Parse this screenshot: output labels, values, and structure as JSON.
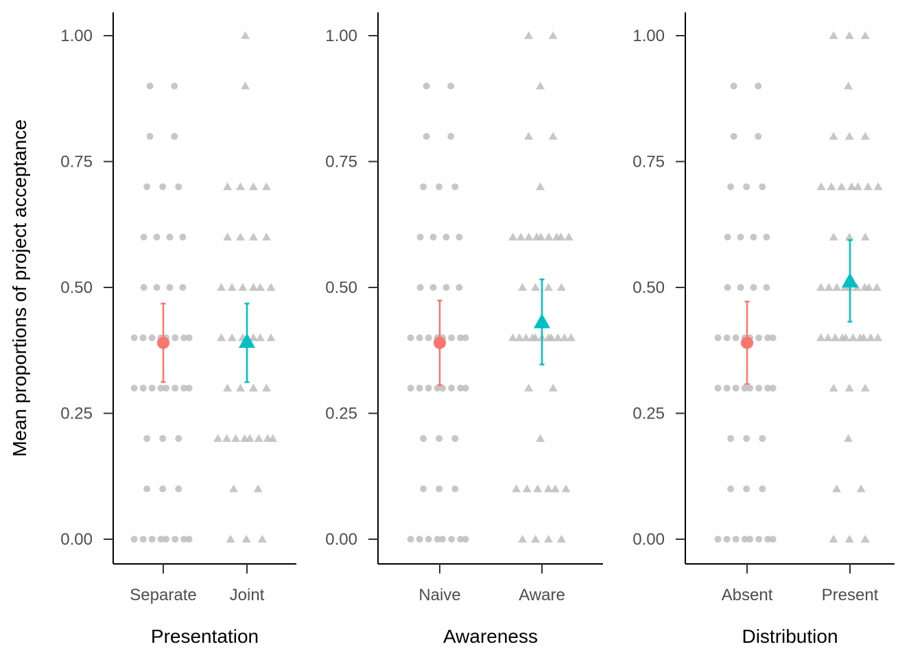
{
  "chart_data": {
    "type": "scatter",
    "ylabel": "Mean proportions of project acceptance",
    "ylim": [
      0,
      1
    ],
    "yticks": [
      0,
      0.25,
      0.5,
      0.75,
      1
    ],
    "ytick_labels": [
      "0.00",
      "0.25",
      "0.50",
      "0.75",
      "1.00"
    ],
    "colors": {
      "level1": "#F8766D",
      "level2": "#00BFC4",
      "raw": "#bdbdbd"
    },
    "panels": [
      {
        "xlabel": "Presentation",
        "categories": [
          "Separate",
          "Joint"
        ],
        "means": [
          0.39,
          0.393
        ],
        "ci_low": [
          0.312,
          0.312
        ],
        "ci_high": [
          0.468,
          0.468
        ],
        "raw": [
          [
            0.0,
            0.0,
            0.0,
            0.0,
            0.0,
            0.0,
            0.0,
            0.0,
            0.1,
            0.1,
            0.1,
            0.2,
            0.2,
            0.2,
            0.3,
            0.3,
            0.3,
            0.3,
            0.3,
            0.3,
            0.3,
            0.3,
            0.4,
            0.4,
            0.4,
            0.4,
            0.4,
            0.4,
            0.4,
            0.4,
            0.5,
            0.5,
            0.5,
            0.5,
            0.6,
            0.6,
            0.6,
            0.6,
            0.7,
            0.7,
            0.7,
            0.8,
            0.8,
            0.9,
            0.9
          ],
          [
            0.0,
            0.0,
            0.0,
            0.1,
            0.1,
            0.2,
            0.2,
            0.2,
            0.2,
            0.2,
            0.2,
            0.2,
            0.2,
            0.3,
            0.3,
            0.3,
            0.3,
            0.4,
            0.4,
            0.4,
            0.4,
            0.4,
            0.4,
            0.5,
            0.5,
            0.5,
            0.5,
            0.5,
            0.5,
            0.6,
            0.6,
            0.6,
            0.6,
            0.7,
            0.7,
            0.7,
            0.7,
            0.9,
            1.0
          ]
        ]
      },
      {
        "xlabel": "Awareness",
        "categories": [
          "Naive",
          "Aware"
        ],
        "means": [
          0.39,
          0.432
        ],
        "ci_low": [
          0.306,
          0.347
        ],
        "ci_high": [
          0.474,
          0.516
        ],
        "raw": [
          [
            0.0,
            0.0,
            0.0,
            0.0,
            0.0,
            0.0,
            0.0,
            0.0,
            0.1,
            0.1,
            0.1,
            0.2,
            0.2,
            0.2,
            0.3,
            0.3,
            0.3,
            0.3,
            0.3,
            0.3,
            0.3,
            0.3,
            0.4,
            0.4,
            0.4,
            0.4,
            0.4,
            0.4,
            0.4,
            0.4,
            0.5,
            0.5,
            0.5,
            0.5,
            0.6,
            0.6,
            0.6,
            0.6,
            0.7,
            0.7,
            0.7,
            0.8,
            0.8,
            0.9,
            0.9
          ],
          [
            0.0,
            0.0,
            0.0,
            0.0,
            0.1,
            0.1,
            0.1,
            0.1,
            0.1,
            0.1,
            0.2,
            0.3,
            0.3,
            0.4,
            0.4,
            0.4,
            0.4,
            0.4,
            0.4,
            0.4,
            0.4,
            0.4,
            0.4,
            0.4,
            0.5,
            0.5,
            0.5,
            0.5,
            0.6,
            0.6,
            0.6,
            0.6,
            0.6,
            0.6,
            0.6,
            0.6,
            0.6,
            0.7,
            0.8,
            0.8,
            0.9,
            1.0,
            1.0
          ]
        ]
      },
      {
        "xlabel": "Distribution",
        "categories": [
          "Absent",
          "Present"
        ],
        "means": [
          0.39,
          0.513
        ],
        "ci_low": [
          0.308,
          0.432
        ],
        "ci_high": [
          0.472,
          0.594
        ],
        "raw": [
          [
            0.0,
            0.0,
            0.0,
            0.0,
            0.0,
            0.0,
            0.0,
            0.0,
            0.1,
            0.1,
            0.1,
            0.2,
            0.2,
            0.2,
            0.3,
            0.3,
            0.3,
            0.3,
            0.3,
            0.3,
            0.3,
            0.3,
            0.4,
            0.4,
            0.4,
            0.4,
            0.4,
            0.4,
            0.4,
            0.4,
            0.5,
            0.5,
            0.5,
            0.5,
            0.6,
            0.6,
            0.6,
            0.6,
            0.7,
            0.7,
            0.7,
            0.8,
            0.8,
            0.9,
            0.9
          ],
          [
            0.0,
            0.0,
            0.0,
            0.1,
            0.1,
            0.2,
            0.3,
            0.3,
            0.3,
            0.4,
            0.4,
            0.4,
            0.4,
            0.4,
            0.4,
            0.4,
            0.4,
            0.4,
            0.4,
            0.5,
            0.5,
            0.5,
            0.5,
            0.5,
            0.5,
            0.5,
            0.5,
            0.5,
            0.6,
            0.6,
            0.6,
            0.7,
            0.7,
            0.7,
            0.7,
            0.7,
            0.7,
            0.7,
            0.8,
            0.8,
            0.8,
            0.9,
            1.0,
            1.0,
            1.0
          ]
        ]
      }
    ]
  }
}
